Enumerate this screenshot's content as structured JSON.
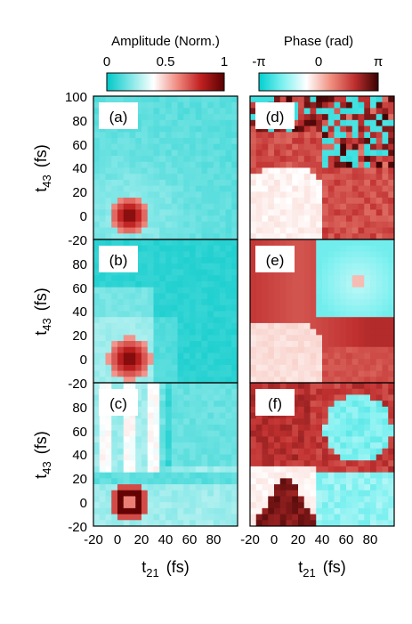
{
  "colorbars": {
    "amplitude": {
      "label": "Amplitude (Norm.)",
      "ticks": [
        "0",
        "0.5",
        "1"
      ],
      "range": [
        0,
        1
      ],
      "colors": [
        "#00c8c8",
        "#7fe6e6",
        "#ffffff",
        "#f08a80",
        "#c02020",
        "#5a0000"
      ]
    },
    "phase": {
      "label": "Phase (rad)",
      "ticks": [
        "-π",
        "0",
        "π"
      ],
      "range": [
        -3.14159,
        3.14159
      ],
      "colors": [
        "#00d0d0",
        "#7ff0f0",
        "#ffffff",
        "#f09080",
        "#c03030",
        "#3a0000"
      ]
    }
  },
  "axes": {
    "ylabel_main": "t",
    "ylabel_sub": "43",
    "ylabel_unit": "(fs)",
    "xlabel_main": "t",
    "xlabel_sub": "21",
    "xlabel_unit": "(fs)",
    "xticks": [
      "-20",
      "0",
      "20",
      "40",
      "60",
      "80"
    ],
    "yticks_top": [
      "100",
      "80",
      "60",
      "40",
      "20",
      "0",
      "-20"
    ],
    "yticks_other": [
      "80",
      "60",
      "40",
      "20",
      "0",
      "-20"
    ]
  },
  "chart_data": [
    {
      "type": "heatmap",
      "panel": "(a)",
      "quantity": "amplitude",
      "x_range": [
        -20,
        100
      ],
      "y_range": [
        -20,
        100
      ],
      "grid": [
        24,
        24
      ],
      "features": {
        "peak_center": [
          10,
          0
        ],
        "peak_radius_fs": 17,
        "background": 0.12
      }
    },
    {
      "type": "heatmap",
      "panel": "(b)",
      "quantity": "amplitude",
      "x_range": [
        -20,
        100
      ],
      "y_range": [
        -20,
        100
      ],
      "grid": [
        24,
        24
      ],
      "features": {
        "peak_center": [
          10,
          0
        ],
        "peak_radius_fs": 19,
        "background": 0.08
      }
    },
    {
      "type": "heatmap",
      "panel": "(c)",
      "quantity": "amplitude",
      "x_range": [
        -20,
        100
      ],
      "y_range": [
        -20,
        100
      ],
      "grid": [
        24,
        24
      ],
      "features": {
        "peak_center": [
          10,
          0
        ],
        "peak_radius_fs": 16,
        "ring": true,
        "stripes_x": [
          -10,
          10,
          30
        ],
        "stripes_y": [
          20
        ],
        "background": 0.2
      }
    },
    {
      "type": "heatmap",
      "panel": "(d)",
      "quantity": "phase",
      "x_range": [
        -20,
        100
      ],
      "y_range": [
        -20,
        100
      ],
      "grid": [
        24,
        24
      ],
      "features": {
        "low_phase_region": "lower-left",
        "noisy_region": "upper-right"
      }
    },
    {
      "type": "heatmap",
      "panel": "(e)",
      "quantity": "phase",
      "x_range": [
        -20,
        100
      ],
      "y_range": [
        -20,
        100
      ],
      "grid": [
        24,
        24
      ],
      "features": {
        "low_phase_region": "lower-left",
        "cyan_box": [
          35,
          95,
          35,
          95
        ]
      }
    },
    {
      "type": "heatmap",
      "panel": "(f)",
      "quantity": "phase",
      "x_range": [
        -20,
        100
      ],
      "y_range": [
        -20,
        100
      ],
      "grid": [
        24,
        24
      ],
      "features": {
        "quadrants": true
      }
    }
  ]
}
